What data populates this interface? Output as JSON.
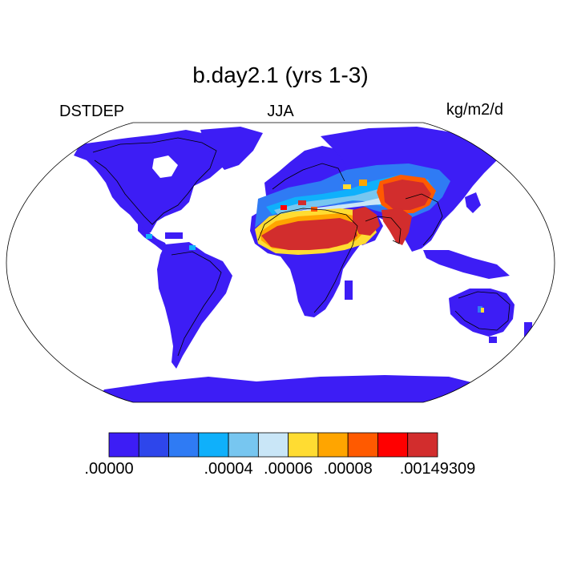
{
  "title": "b.day2.1 (yrs 1-3)",
  "left_label": "DSTDEP",
  "center_label": "JJA",
  "right_label": "kg/m2/d",
  "colorbar": {
    "colors": [
      "#3d1df5",
      "#2e46eb",
      "#2f7bf4",
      "#0fb0fb",
      "#77c6f0",
      "#c9e6f7",
      "#ffdc32",
      "#ffa500",
      "#ff5a00",
      "#ff0000",
      "#d22d2d"
    ],
    "ticks": [
      {
        "label": ".00000",
        "boundary": 0
      },
      {
        "label": ".00004",
        "boundary": 4
      },
      {
        "label": ".00006",
        "boundary": 6
      },
      {
        "label": ".00008",
        "boundary": 8
      },
      {
        "label": ".00149309",
        "boundary": 11
      }
    ]
  },
  "map": {
    "projection": "robinson",
    "ocean_color": "#ffffff",
    "land_base_color": "#3d1df5"
  }
}
